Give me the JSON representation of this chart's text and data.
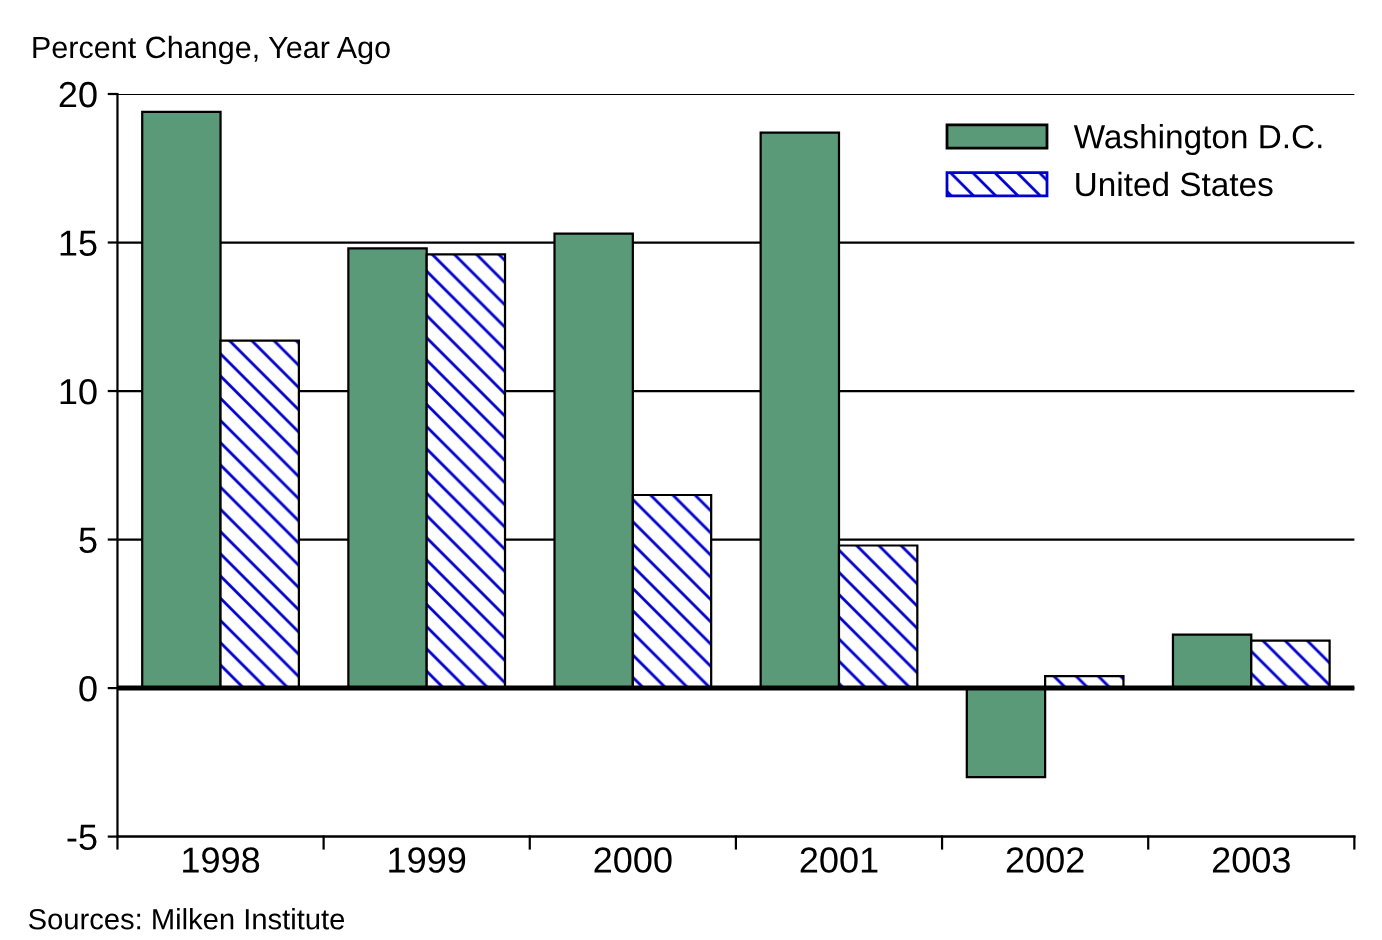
{
  "chart_data": {
    "type": "bar",
    "ylabel": "Percent Change, Year Ago",
    "categories": [
      "1998",
      "1999",
      "2000",
      "2001",
      "2002",
      "2003"
    ],
    "series": [
      {
        "name": "Washington D.C.",
        "color": "#5a9a78",
        "values": [
          19.4,
          14.8,
          15.3,
          18.7,
          -3.0,
          1.8
        ]
      },
      {
        "name": "United States",
        "color": "#0000cc",
        "values": [
          11.7,
          14.6,
          6.5,
          4.8,
          0.4,
          1.6
        ]
      }
    ],
    "ylim": [
      -5,
      20
    ],
    "yticks": [
      -5,
      0,
      5,
      10,
      15,
      20
    ],
    "grid": "y",
    "legend": "top right",
    "annotations": [
      "Sources: Milken Institute"
    ]
  }
}
